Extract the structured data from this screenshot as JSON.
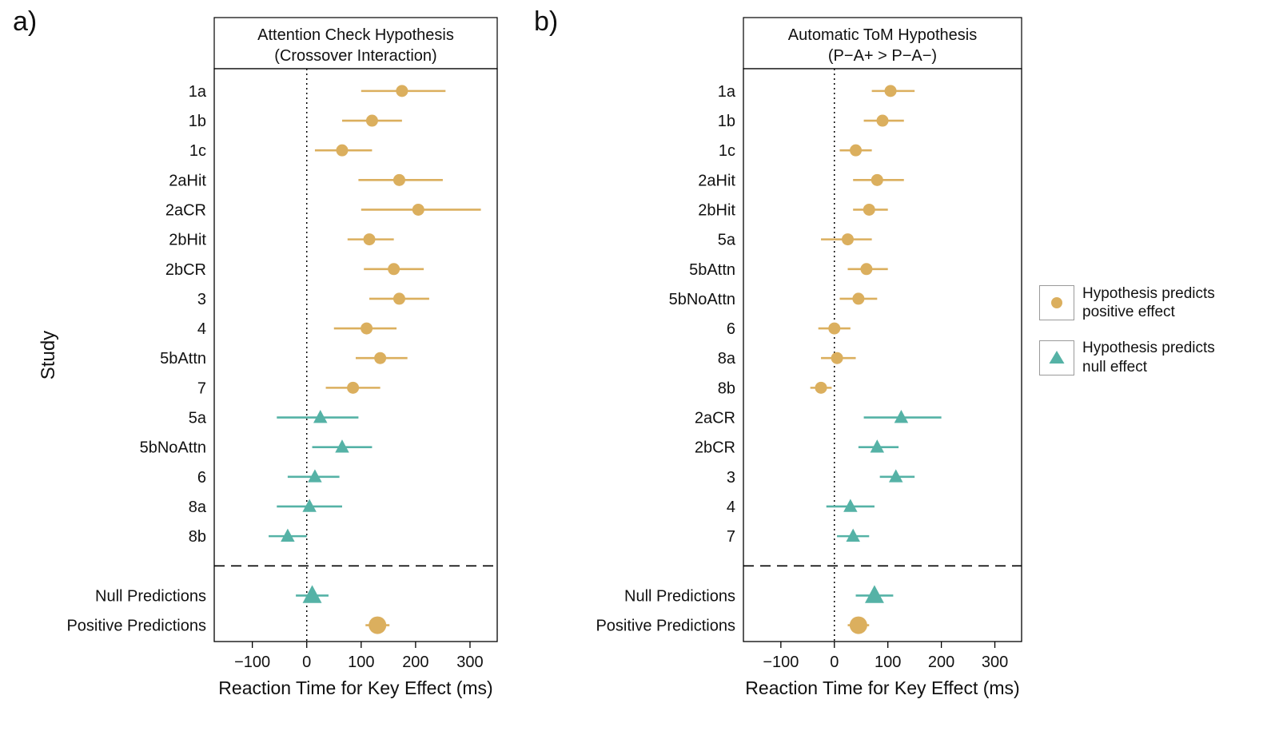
{
  "figure": {
    "panel_a_tag": "a)",
    "panel_b_tag": "b)"
  },
  "colors": {
    "positive": "#DBAF5E",
    "null": "#55B2A6"
  },
  "legend": {
    "items": [
      {
        "name": "positive-effect",
        "marker": "circle",
        "color": "#DBAF5E",
        "line1": "Hypothesis predicts",
        "line2": "positive effect"
      },
      {
        "name": "null-effect",
        "marker": "triangle",
        "color": "#55B2A6",
        "line1": "Hypothesis predicts",
        "line2": "null effect"
      }
    ]
  },
  "chart_data": [
    {
      "type": "scatter",
      "title_line1": "Attention Check Hypothesis",
      "title_line2": "(Crossover Interaction)",
      "xlabel": "Reaction Time for Key Effect (ms)",
      "ylabel": "Study",
      "xlim": [
        -170,
        350
      ],
      "xticks": [
        {
          "v": -100,
          "label": "−100"
        },
        {
          "v": 0,
          "label": "0"
        },
        {
          "v": 100,
          "label": "100"
        },
        {
          "v": 200,
          "label": "200"
        },
        {
          "v": 300,
          "label": "300"
        }
      ],
      "zero_line": 0,
      "rows": [
        {
          "label": "1a",
          "est": 175,
          "lo": 100,
          "hi": 255,
          "kind": "positive"
        },
        {
          "label": "1b",
          "est": 120,
          "lo": 65,
          "hi": 175,
          "kind": "positive"
        },
        {
          "label": "1c",
          "est": 65,
          "lo": 15,
          "hi": 120,
          "kind": "positive"
        },
        {
          "label": "2aHit",
          "est": 170,
          "lo": 95,
          "hi": 250,
          "kind": "positive"
        },
        {
          "label": "2aCR",
          "est": 205,
          "lo": 100,
          "hi": 320,
          "kind": "positive"
        },
        {
          "label": "2bHit",
          "est": 115,
          "lo": 75,
          "hi": 160,
          "kind": "positive"
        },
        {
          "label": "2bCR",
          "est": 160,
          "lo": 105,
          "hi": 215,
          "kind": "positive"
        },
        {
          "label": "3",
          "est": 170,
          "lo": 115,
          "hi": 225,
          "kind": "positive"
        },
        {
          "label": "4",
          "est": 110,
          "lo": 50,
          "hi": 165,
          "kind": "positive"
        },
        {
          "label": "5bAttn",
          "est": 135,
          "lo": 90,
          "hi": 185,
          "kind": "positive"
        },
        {
          "label": "7",
          "est": 85,
          "lo": 35,
          "hi": 135,
          "kind": "positive"
        },
        {
          "label": "5a",
          "est": 25,
          "lo": -55,
          "hi": 95,
          "kind": "null"
        },
        {
          "label": "5bNoAttn",
          "est": 65,
          "lo": 10,
          "hi": 120,
          "kind": "null"
        },
        {
          "label": "6",
          "est": 15,
          "lo": -35,
          "hi": 60,
          "kind": "null"
        },
        {
          "label": "8a",
          "est": 5,
          "lo": -55,
          "hi": 65,
          "kind": "null"
        },
        {
          "label": "8b",
          "est": -35,
          "lo": -70,
          "hi": 0,
          "kind": "null"
        }
      ],
      "summary_rows": [
        {
          "label": "Null Predictions",
          "est": 10,
          "lo": -20,
          "hi": 40,
          "kind": "null"
        },
        {
          "label": "Positive Predictions",
          "est": 130,
          "lo": 108,
          "hi": 152,
          "kind": "positive"
        }
      ]
    },
    {
      "type": "scatter",
      "title_line1": "Automatic ToM Hypothesis",
      "title_line2": "(P−A+ > P−A−)",
      "xlabel": "Reaction Time for Key Effect (ms)",
      "ylabel": "",
      "xlim": [
        -170,
        350
      ],
      "xticks": [
        {
          "v": -100,
          "label": "−100"
        },
        {
          "v": 0,
          "label": "0"
        },
        {
          "v": 100,
          "label": "100"
        },
        {
          "v": 200,
          "label": "200"
        },
        {
          "v": 300,
          "label": "300"
        }
      ],
      "zero_line": 0,
      "rows": [
        {
          "label": "1a",
          "est": 105,
          "lo": 70,
          "hi": 150,
          "kind": "positive"
        },
        {
          "label": "1b",
          "est": 90,
          "lo": 55,
          "hi": 130,
          "kind": "positive"
        },
        {
          "label": "1c",
          "est": 40,
          "lo": 10,
          "hi": 70,
          "kind": "positive"
        },
        {
          "label": "2aHit",
          "est": 80,
          "lo": 35,
          "hi": 130,
          "kind": "positive"
        },
        {
          "label": "2bHit",
          "est": 65,
          "lo": 35,
          "hi": 100,
          "kind": "positive"
        },
        {
          "label": "5a",
          "est": 25,
          "lo": -25,
          "hi": 70,
          "kind": "positive"
        },
        {
          "label": "5bAttn",
          "est": 60,
          "lo": 25,
          "hi": 100,
          "kind": "positive"
        },
        {
          "label": "5bNoAttn",
          "est": 45,
          "lo": 10,
          "hi": 80,
          "kind": "positive"
        },
        {
          "label": "6",
          "est": 0,
          "lo": -30,
          "hi": 30,
          "kind": "positive"
        },
        {
          "label": "8a",
          "est": 5,
          "lo": -25,
          "hi": 40,
          "kind": "positive"
        },
        {
          "label": "8b",
          "est": -25,
          "lo": -45,
          "hi": -5,
          "kind": "positive"
        },
        {
          "label": "2aCR",
          "est": 125,
          "lo": 55,
          "hi": 200,
          "kind": "null"
        },
        {
          "label": "2bCR",
          "est": 80,
          "lo": 45,
          "hi": 120,
          "kind": "null"
        },
        {
          "label": "3",
          "est": 115,
          "lo": 85,
          "hi": 150,
          "kind": "null"
        },
        {
          "label": "4",
          "est": 30,
          "lo": -15,
          "hi": 75,
          "kind": "null"
        },
        {
          "label": "7",
          "est": 35,
          "lo": 5,
          "hi": 65,
          "kind": "null"
        }
      ],
      "summary_rows": [
        {
          "label": "Null Predictions",
          "est": 75,
          "lo": 40,
          "hi": 110,
          "kind": "null"
        },
        {
          "label": "Positive Predictions",
          "est": 45,
          "lo": 25,
          "hi": 65,
          "kind": "positive"
        }
      ]
    }
  ]
}
